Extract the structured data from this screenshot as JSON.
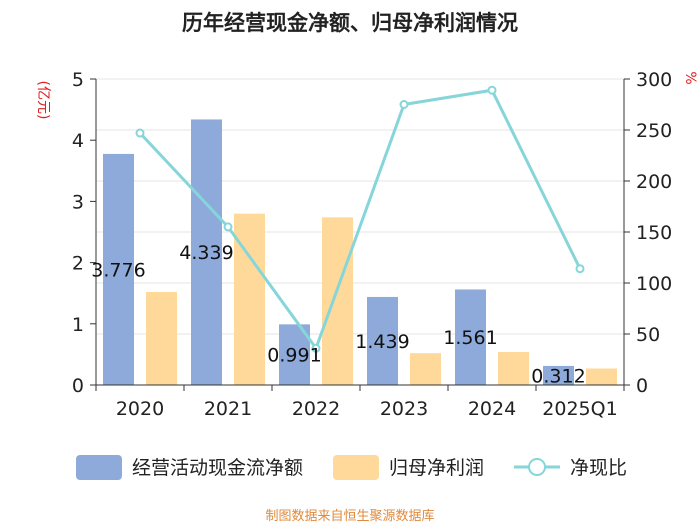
{
  "chart_data": {
    "type": "bar+line",
    "title": "历年经营现金净额、归母净利润情况",
    "categories": [
      "2020",
      "2021",
      "2022",
      "2023",
      "2024",
      "2025Q1"
    ],
    "series": [
      {
        "name": "经营活动现金流净额",
        "kind": "bar",
        "axis": "left",
        "color": "#8eaadb",
        "values": [
          3.776,
          4.339,
          0.991,
          1.439,
          1.561,
          0.312
        ]
      },
      {
        "name": "归母净利润",
        "kind": "bar",
        "axis": "left",
        "color": "#ffd99a",
        "values": [
          1.52,
          2.8,
          2.74,
          0.52,
          0.54,
          0.27
        ]
      },
      {
        "name": "净现比",
        "kind": "line",
        "axis": "right",
        "color": "#86d6d9",
        "values": [
          247,
          155,
          36,
          275,
          289,
          114
        ]
      }
    ],
    "data_labels": [
      "3.776",
      "4.339",
      "0.991",
      "1.439",
      "1.561",
      "0.312"
    ],
    "left_axis": {
      "label": "(亿元)",
      "ylim": [
        0,
        5
      ],
      "ticks": [
        "0",
        "1",
        "2",
        "3",
        "4",
        "5"
      ]
    },
    "right_axis": {
      "label": "%",
      "ylim": [
        0,
        300
      ],
      "ticks": [
        "0",
        "50",
        "100",
        "150",
        "200",
        "250",
        "300"
      ]
    },
    "legend_position": "bottom",
    "source": "制图数据来自恒生聚源数据库",
    "colors": {
      "axis_label": "#e02020",
      "source": "#e08a3c",
      "grid": "#e6e6e6"
    }
  }
}
